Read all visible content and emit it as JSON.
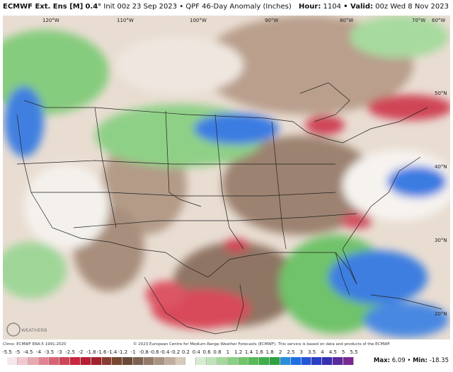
{
  "header": {
    "model": "ECMWF Ext. Ens [M]",
    "resolution": "0.4°",
    "init": "Init 00z 23 Sep 2023",
    "product": "QPF 46-Day Anomaly (Inches)",
    "hour_label": "Hour:",
    "hour_value": "1104",
    "valid_label": "Valid:",
    "valid_value": "00z Wed 8 Nov 2023"
  },
  "map": {
    "lon_labels": [
      "120°W",
      "110°W",
      "100°W",
      "90°W",
      "80°W",
      "70°W",
      "60°W"
    ],
    "lat_labels": [
      "50°N",
      "40°N",
      "30°N",
      "20°N"
    ],
    "logo_text": "WEATHERBELL"
  },
  "footer": {
    "climo": "Climo: ECMWF ERA-5 1991-2020",
    "copyright": "© 2023 European Centre for Medium-Range Weather Forecasts (ECMWF). This service is based on data and products of the ECMWF."
  },
  "colorbar": {
    "labels": [
      "-5.5",
      "-5",
      "-4.5",
      "-4",
      "-3.5",
      "-3",
      "-2.5",
      "-2",
      "-1.8",
      "-1.6",
      "-1.4",
      "-1.2",
      "-1",
      "-0.8",
      "-0.6",
      "-0.4",
      "-0.2",
      "0.2",
      "0.4",
      "0.6",
      "0.8",
      "1",
      "1.2",
      "1.4",
      "1.6",
      "1.8",
      "2",
      "2.5",
      "3",
      "3.5",
      "4",
      "4.5",
      "5",
      "5.5"
    ],
    "colors": [
      "#f6e8ea",
      "#f0c9cf",
      "#e9a7b0",
      "#e08491",
      "#d76474",
      "#cf4457",
      "#c7283e",
      "#b81d33",
      "#a2222b",
      "#8a3b30",
      "#76482f",
      "#6a4a34",
      "#7e6150",
      "#937a69",
      "#a99484",
      "#c1ad9d",
      "#d8c9bb",
      "#ffffff",
      "#d6ecd2",
      "#bfe3b8",
      "#a4d99d",
      "#8bcf84",
      "#70c46b",
      "#58b957",
      "#3fae4a",
      "#2ea243",
      "#2a8fd8",
      "#1e6fe6",
      "#2555d8",
      "#2b3fc6",
      "#3a2fb2",
      "#5a2aa0",
      "#7a2a90"
    ]
  },
  "stats": {
    "max_label": "Max:",
    "max_value": "6.09",
    "min_label": "Min:",
    "min_value": "-18.35"
  }
}
